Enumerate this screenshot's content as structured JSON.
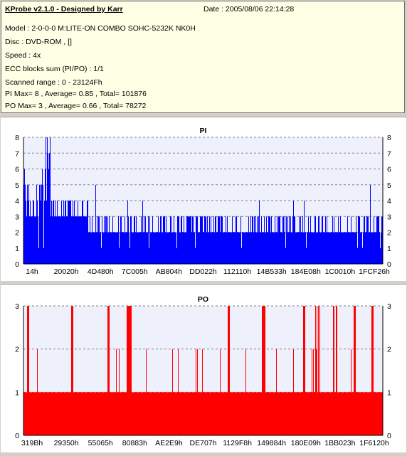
{
  "info": {
    "title": "KProbe v2.1.0 - Designed by Karr",
    "date": "Date : 2005/08/06 22:14:28",
    "lines": [
      "Model : 2-0-0-0 M:LITE-ON COMBO SOHC-5232K NK0H",
      "Disc : DVD-ROM ,  []",
      "Speed : 4x",
      "ECC blocks sum (PI/PO) : 1/1",
      "Scanned range : 0 - 23124Fh",
      "PI Max= 8 , Average= 0.85 , Total= 101876",
      "PO Max= 3 , Average= 0.66 , Total= 78272"
    ]
  },
  "chart_data": [
    {
      "type": "bar",
      "title": "PI",
      "color": "#0000ff",
      "ylim": [
        0,
        8
      ],
      "yticks": [
        0,
        1,
        2,
        3,
        4,
        5,
        6,
        7,
        8
      ],
      "xticks": [
        "14h",
        "20020h",
        "4D480h",
        "7C005h",
        "AB804h",
        "DD022h",
        "112110h",
        "14B533h",
        "184E08h",
        "1C0010h",
        "1FCF26h"
      ],
      "xlim": [
        0,
        1
      ]
    },
    {
      "type": "bar",
      "title": "PO",
      "color": "#ff0000",
      "ylim": [
        0,
        3
      ],
      "yticks": [
        0,
        1,
        2,
        3
      ],
      "xticks": [
        "319Bh",
        "29350h",
        "55065h",
        "80883h",
        "AE2E9h",
        "DE707h",
        "1129F8h",
        "149884h",
        "180E09h",
        "1BB023h",
        "1F6120h"
      ],
      "xlim": [
        0,
        1
      ]
    }
  ]
}
